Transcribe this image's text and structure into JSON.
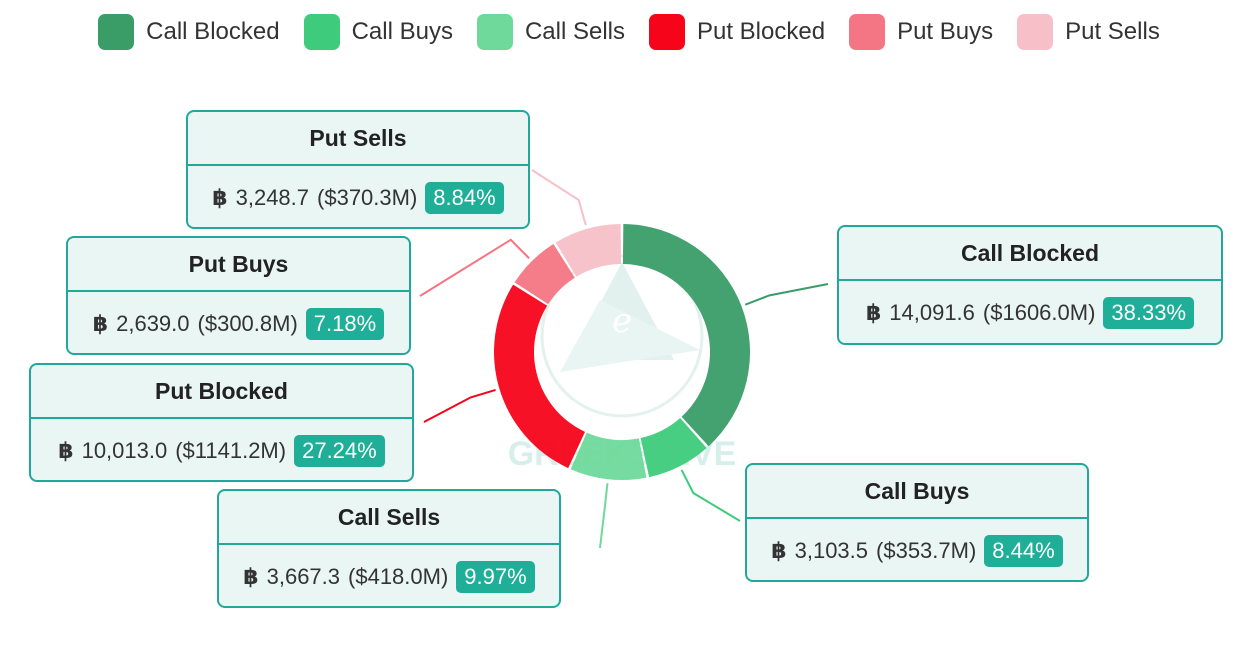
{
  "chart_data": {
    "type": "pie",
    "variant": "donut",
    "legend_position": "top",
    "currency_symbol": "฿",
    "slices": [
      {
        "name": "Call Blocked",
        "btc": "14,091.6",
        "usd": "($1606.0M)",
        "percent_label": "38.33%",
        "value": 38.33,
        "color": "#3a9d68"
      },
      {
        "name": "Call Buys",
        "btc": "3,103.5",
        "usd": "($353.7M)",
        "percent_label": "8.44%",
        "value": 8.44,
        "color": "#3ecb7c"
      },
      {
        "name": "Call Sells",
        "btc": "3,667.3",
        "usd": "($418.0M)",
        "percent_label": "9.97%",
        "value": 9.97,
        "color": "#6fd99b"
      },
      {
        "name": "Put Blocked",
        "btc": "10,013.0",
        "usd": "($1141.2M)",
        "percent_label": "27.24%",
        "value": 27.24,
        "color": "#f5041a"
      },
      {
        "name": "Put Buys",
        "btc": "2,639.0",
        "usd": "($300.8M)",
        "percent_label": "7.18%",
        "value": 7.18,
        "color": "#f47583"
      },
      {
        "name": "Put Sells",
        "btc": "3,248.7",
        "usd": "($370.3M)",
        "percent_label": "8.84%",
        "value": 8.84,
        "color": "#f7c0c8"
      }
    ]
  },
  "watermark": {
    "text": "GREEKS.LIVE"
  }
}
